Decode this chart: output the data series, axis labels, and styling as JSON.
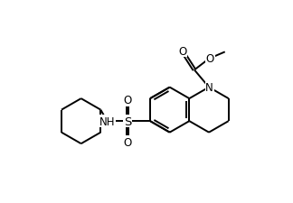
{
  "background": "#ffffff",
  "line_color": "#000000",
  "line_width": 1.4,
  "figsize": [
    3.24,
    2.26
  ],
  "dpi": 100,
  "xlim": [
    0,
    10
  ],
  "ylim": [
    0,
    7
  ]
}
